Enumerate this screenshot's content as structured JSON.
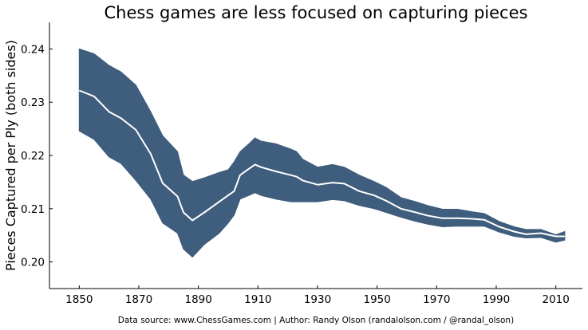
{
  "chart_data": {
    "type": "area",
    "title": "Chess games are less focused on capturing pieces",
    "xlabel": "",
    "ylabel": "Pieces Captured per Ply (both sides)",
    "footer": "Data source: www.ChessGames.com | Author: Randy Olson (randalolson.com / @randal_olson)",
    "xlim": [
      1840,
      2020
    ],
    "ylim": [
      0.195,
      0.245
    ],
    "xticks": [
      1850,
      1870,
      1890,
      1910,
      1930,
      1950,
      1970,
      1990,
      2010
    ],
    "xtick_labels": [
      "1850",
      "1870",
      "1890",
      "1910",
      "1930",
      "1950",
      "1970",
      "1990",
      "2010"
    ],
    "yticks": [
      0.2,
      0.21,
      0.22,
      0.23,
      0.24
    ],
    "ytick_labels": [
      "0.20",
      "0.21",
      "0.22",
      "0.23",
      "0.24"
    ],
    "grid": false,
    "band_color": "#3F5D7D",
    "line_color": "#FFFFFF",
    "x": [
      1850,
      1855,
      1860,
      1864,
      1869,
      1874,
      1878,
      1883,
      1885,
      1888,
      1892,
      1897,
      1900,
      1902,
      1904,
      1907,
      1909,
      1911,
      1916,
      1921,
      1923,
      1925,
      1930,
      1935,
      1939,
      1944,
      1949,
      1953,
      1958,
      1963,
      1967,
      1972,
      1977,
      1982,
      1986,
      1991,
      1996,
      2000,
      2005,
      2010,
      2013
    ],
    "series": [
      {
        "role": "mean",
        "values": [
          0.2322,
          0.2311,
          0.2282,
          0.227,
          0.2248,
          0.2203,
          0.2148,
          0.2123,
          0.2093,
          0.2078,
          0.2093,
          0.2113,
          0.2125,
          0.2133,
          0.2163,
          0.2175,
          0.2183,
          0.2178,
          0.217,
          0.2163,
          0.216,
          0.2153,
          0.2145,
          0.2149,
          0.2147,
          0.2133,
          0.2125,
          0.2115,
          0.21,
          0.2093,
          0.2087,
          0.2082,
          0.2082,
          0.2081,
          0.2079,
          0.2066,
          0.2057,
          0.2052,
          0.2054,
          0.2048,
          0.2048
        ]
      },
      {
        "role": "upper",
        "values": [
          0.24,
          0.2391,
          0.2369,
          0.2357,
          0.2332,
          0.2282,
          0.2237,
          0.2207,
          0.2163,
          0.2151,
          0.2158,
          0.2168,
          0.2173,
          0.2188,
          0.2207,
          0.2222,
          0.2233,
          0.2227,
          0.2222,
          0.2212,
          0.2207,
          0.2193,
          0.2178,
          0.2183,
          0.2178,
          0.2163,
          0.2151,
          0.214,
          0.2121,
          0.2113,
          0.2106,
          0.2099,
          0.2099,
          0.2094,
          0.2091,
          0.2076,
          0.2066,
          0.2061,
          0.2061,
          0.2051,
          0.2057
        ]
      },
      {
        "role": "lower",
        "values": [
          0.2246,
          0.223,
          0.2197,
          0.2185,
          0.2153,
          0.2118,
          0.2073,
          0.2054,
          0.2024,
          0.2009,
          0.2033,
          0.2054,
          0.2073,
          0.2088,
          0.2118,
          0.2125,
          0.213,
          0.2125,
          0.2118,
          0.2113,
          0.2113,
          0.2113,
          0.2113,
          0.2117,
          0.2115,
          0.2106,
          0.21,
          0.2093,
          0.2084,
          0.2076,
          0.2071,
          0.2066,
          0.2067,
          0.2067,
          0.2067,
          0.2056,
          0.2048,
          0.2045,
          0.2046,
          0.2037,
          0.2041
        ]
      }
    ]
  }
}
